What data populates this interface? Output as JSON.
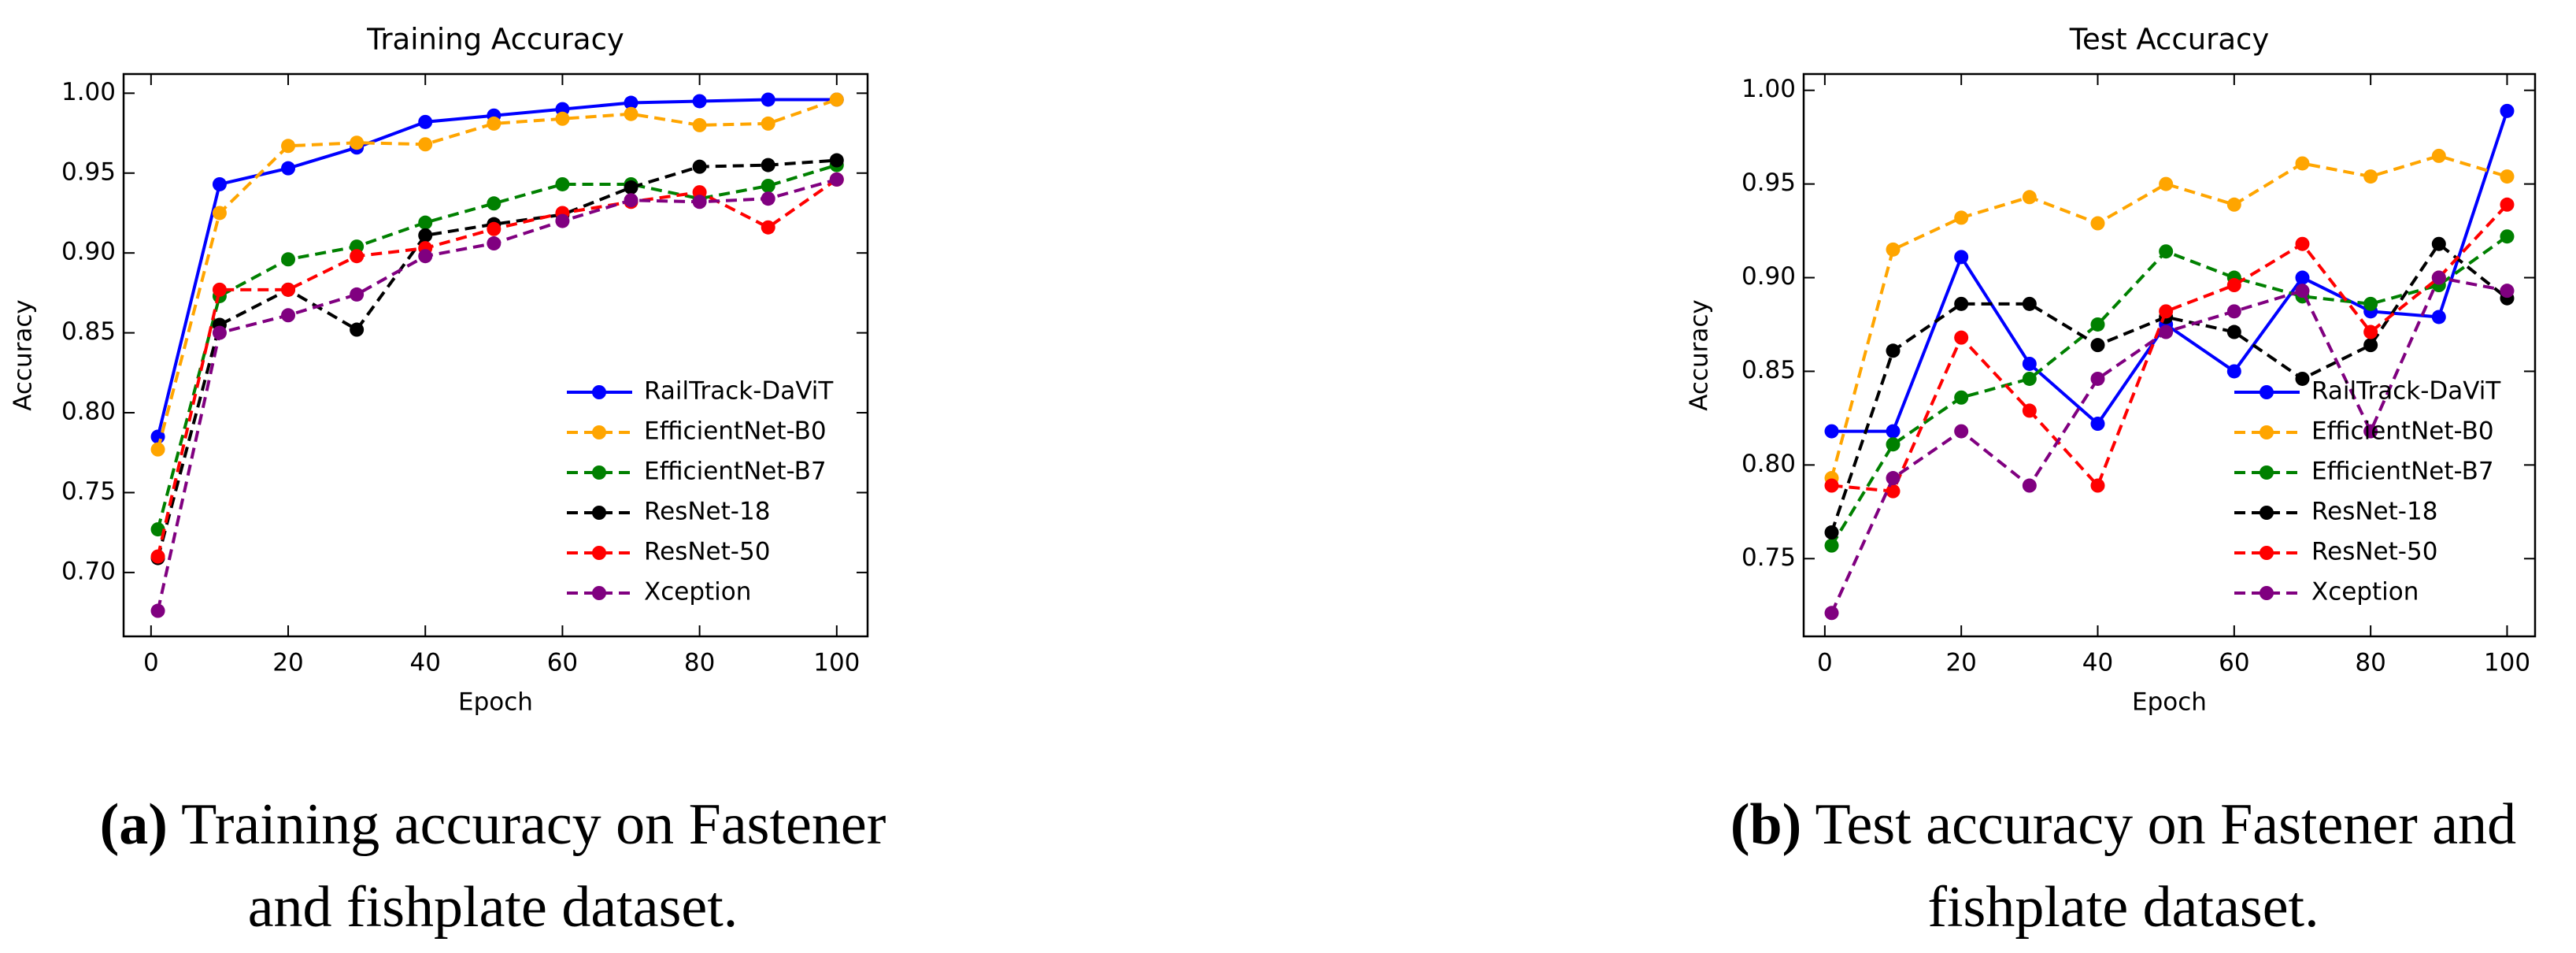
{
  "chart_data": [
    {
      "type": "line",
      "title": "Training Accuracy",
      "xlabel": "Epoch",
      "ylabel": "Accuracy",
      "caption_label": "(a)",
      "caption": "Training accuracy on Fastener and fishplate dataset.",
      "x": [
        1,
        10,
        20,
        30,
        40,
        50,
        60,
        70,
        80,
        90,
        100
      ],
      "xlim": [
        -4,
        104.5
      ],
      "xticks": [
        0,
        20,
        40,
        60,
        80,
        100
      ],
      "ylim": [
        0.66,
        1.012
      ],
      "yticks": [
        {
          "value": 0.7,
          "label": "0.70"
        },
        {
          "value": 0.75,
          "label": "0.75"
        },
        {
          "value": 0.8,
          "label": "0.80"
        },
        {
          "value": 0.85,
          "label": "0.85"
        },
        {
          "value": 0.9,
          "label": "0.90"
        },
        {
          "value": 0.95,
          "label": "0.95"
        },
        {
          "value": 1.0,
          "label": "1.00"
        }
      ],
      "legend": "lower right",
      "series": [
        {
          "name": "RailTrack-DaViT",
          "color": "#0000ff",
          "linestyle": "solid",
          "values": [
            0.785,
            0.943,
            0.953,
            0.966,
            0.982,
            0.986,
            0.99,
            0.994,
            0.995,
            0.996,
            0.996
          ]
        },
        {
          "name": "EfficientNet-B0",
          "color": "#ffa500",
          "linestyle": "dashed",
          "values": [
            0.777,
            0.925,
            0.967,
            0.969,
            0.968,
            0.981,
            0.984,
            0.987,
            0.98,
            0.981,
            0.996
          ]
        },
        {
          "name": "EfficientNet-B7",
          "color": "#008000",
          "linestyle": "dashed",
          "values": [
            0.727,
            0.873,
            0.896,
            0.904,
            0.919,
            0.931,
            0.943,
            0.943,
            0.934,
            0.942,
            0.955
          ]
        },
        {
          "name": "ResNet-18",
          "color": "#000000",
          "linestyle": "dashed",
          "values": [
            0.709,
            0.855,
            0.877,
            0.852,
            0.911,
            0.918,
            0.924,
            0.941,
            0.954,
            0.955,
            0.958
          ]
        },
        {
          "name": "ResNet-50",
          "color": "#ff0000",
          "linestyle": "dashed",
          "values": [
            0.71,
            0.877,
            0.877,
            0.898,
            0.903,
            0.915,
            0.925,
            0.932,
            0.938,
            0.916,
            0.946
          ]
        },
        {
          "name": "Xception",
          "color": "#800080",
          "linestyle": "dashed",
          "values": [
            0.676,
            0.85,
            0.861,
            0.874,
            0.898,
            0.906,
            0.92,
            0.933,
            0.932,
            0.934,
            0.946
          ]
        }
      ]
    },
    {
      "type": "line",
      "title": "Test Accuracy",
      "xlabel": "Epoch",
      "ylabel": "Accuracy",
      "caption_label": "(b)",
      "caption": "Test accuracy on Fastener and fishplate dataset.",
      "x": [
        1,
        10,
        20,
        30,
        40,
        50,
        60,
        70,
        80,
        90,
        100
      ],
      "xlim": [
        -3.1,
        104.1
      ],
      "xticks": [
        0,
        20,
        40,
        60,
        80,
        100
      ],
      "ylim": [
        0.7085,
        1.0087
      ],
      "yticks": [
        {
          "value": 0.75,
          "label": "0.75"
        },
        {
          "value": 0.8,
          "label": "0.80"
        },
        {
          "value": 0.85,
          "label": "0.85"
        },
        {
          "value": 0.9,
          "label": "0.90"
        },
        {
          "value": 0.95,
          "label": "0.95"
        },
        {
          "value": 1.0,
          "label": "1.00"
        }
      ],
      "legend": "lower right",
      "series": [
        {
          "name": "RailTrack-DaViT",
          "color": "#0000ff",
          "linestyle": "solid",
          "values": [
            0.818,
            0.818,
            0.911,
            0.854,
            0.822,
            0.875,
            0.85,
            0.9,
            0.882,
            0.879,
            0.989
          ]
        },
        {
          "name": "EfficientNet-B0",
          "color": "#ffa500",
          "linestyle": "dashed",
          "values": [
            0.793,
            0.915,
            0.932,
            0.943,
            0.929,
            0.95,
            0.939,
            0.961,
            0.954,
            0.965,
            0.954
          ]
        },
        {
          "name": "EfficientNet-B7",
          "color": "#008000",
          "linestyle": "dashed",
          "values": [
            0.757,
            0.811,
            0.836,
            0.846,
            0.875,
            0.914,
            0.9,
            0.89,
            0.886,
            0.896,
            0.922
          ]
        },
        {
          "name": "ResNet-18",
          "color": "#000000",
          "linestyle": "dashed",
          "values": [
            0.764,
            0.861,
            0.886,
            0.886,
            0.864,
            0.879,
            0.871,
            0.846,
            0.864,
            0.918,
            0.889
          ]
        },
        {
          "name": "ResNet-50",
          "color": "#ff0000",
          "linestyle": "dashed",
          "values": [
            0.789,
            0.786,
            0.868,
            0.829,
            0.789,
            0.882,
            0.896,
            0.918,
            0.871,
            0.9,
            0.939
          ]
        },
        {
          "name": "Xception",
          "color": "#800080",
          "linestyle": "dashed",
          "values": [
            0.721,
            0.793,
            0.818,
            0.789,
            0.846,
            0.871,
            0.882,
            0.893,
            0.818,
            0.9,
            0.893
          ]
        }
      ]
    }
  ]
}
